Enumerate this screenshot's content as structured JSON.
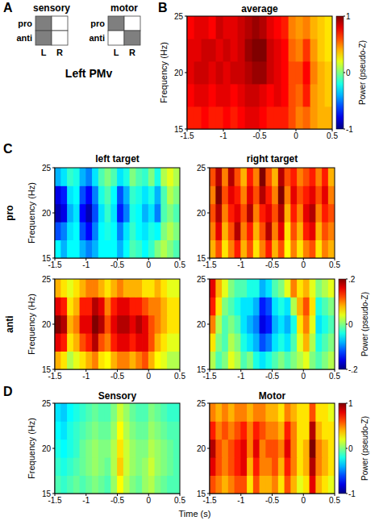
{
  "panel_letters": [
    "A",
    "B",
    "C",
    "D"
  ],
  "schematic": {
    "title": "Left PMv",
    "grids": [
      {
        "title": "sensory",
        "rows": [
          "pro",
          "anti"
        ],
        "columns": [
          "L",
          "R"
        ],
        "filled": [
          [
            true,
            false
          ],
          [
            true,
            false
          ]
        ]
      },
      {
        "title": "motor",
        "rows": [
          "pro",
          "anti"
        ],
        "columns": [
          "L",
          "R"
        ],
        "filled": [
          [
            true,
            false
          ],
          [
            false,
            true
          ]
        ]
      }
    ]
  },
  "C_columns": [
    "left target",
    "right target"
  ],
  "C_rows": [
    "pro",
    "anti"
  ],
  "shared_xlabel": "Time (s)",
  "chart_data": [
    {
      "type": "heatmap",
      "title": "average",
      "ylabel": "Frequency (Hz)",
      "x": [
        -1.45,
        -1.35,
        -1.25,
        -1.15,
        -1.05,
        -0.95,
        -0.85,
        -0.75,
        -0.65,
        -0.55,
        -0.45,
        -0.35,
        -0.25,
        -0.15,
        -0.05,
        0.05,
        0.15,
        0.25,
        0.35,
        0.45
      ],
      "y": [
        16,
        18,
        20,
        22,
        24
      ],
      "cells": [
        [
          0.7,
          0.7,
          0.75,
          0.7,
          0.7,
          0.75,
          0.7,
          0.75,
          0.8,
          0.8,
          0.75,
          0.7,
          0.7,
          0.7,
          0.6,
          0.5,
          0.55,
          0.45,
          0.4,
          0.4
        ],
        [
          0.75,
          0.8,
          0.8,
          0.75,
          0.8,
          0.8,
          0.75,
          0.8,
          0.85,
          0.85,
          0.8,
          0.75,
          0.8,
          0.75,
          0.6,
          0.55,
          0.7,
          0.45,
          0.4,
          0.35
        ],
        [
          0.8,
          0.85,
          0.85,
          0.8,
          0.85,
          0.8,
          0.85,
          0.85,
          0.9,
          0.95,
          0.95,
          0.85,
          0.8,
          0.75,
          0.6,
          0.6,
          0.75,
          0.5,
          0.4,
          0.35
        ],
        [
          0.8,
          0.8,
          0.85,
          0.85,
          0.8,
          0.85,
          0.8,
          0.85,
          0.95,
          1.0,
          1.0,
          0.85,
          0.8,
          0.75,
          0.55,
          0.5,
          0.65,
          0.45,
          0.35,
          0.3
        ],
        [
          0.75,
          0.8,
          0.8,
          0.75,
          0.85,
          0.8,
          0.8,
          0.85,
          0.9,
          0.95,
          0.9,
          0.8,
          0.75,
          0.7,
          0.5,
          0.45,
          0.5,
          0.4,
          0.35,
          0.3
        ]
      ],
      "xlim": [
        -1.5,
        0.5
      ],
      "ylim": [
        15,
        25
      ],
      "xticks": [
        -1.5,
        -1,
        -0.5,
        0,
        0.5
      ],
      "yticks": [
        15,
        20,
        25
      ],
      "zlim": [
        -1,
        1
      ],
      "colorbar_ticks": [
        1,
        0,
        -1
      ],
      "colorbar_label": "Power (pseudo-Z)"
    },
    {
      "type": "heatmap",
      "ylabel": "Frequency (Hz)",
      "x": [
        -1.45,
        -1.35,
        -1.25,
        -1.15,
        -1.05,
        -0.95,
        -0.85,
        -0.75,
        -0.65,
        -0.55,
        -0.45,
        -0.35,
        -0.25,
        -0.15,
        -0.05,
        0.05,
        0.15,
        0.25,
        0.35,
        0.45
      ],
      "y": [
        16,
        18,
        20,
        22,
        24
      ],
      "cells": [
        [
          -0.05,
          -0.08,
          -0.05,
          -0.05,
          -0.08,
          -0.1,
          -0.08,
          -0.05,
          -0.05,
          -0.05,
          -0.08,
          -0.05,
          -0.02,
          -0.03,
          -0.05,
          -0.03,
          0.0,
          0.02,
          0.0,
          -0.02
        ],
        [
          -0.12,
          -0.1,
          -0.06,
          -0.05,
          -0.12,
          -0.15,
          -0.1,
          -0.05,
          -0.04,
          -0.05,
          -0.1,
          -0.06,
          -0.03,
          -0.05,
          -0.06,
          -0.04,
          -0.05,
          0.0,
          0.02,
          0.0
        ],
        [
          -0.18,
          -0.16,
          -0.08,
          -0.06,
          -0.15,
          -0.18,
          -0.12,
          -0.06,
          -0.03,
          -0.06,
          -0.14,
          -0.1,
          -0.04,
          -0.05,
          -0.08,
          -0.06,
          -0.1,
          -0.02,
          0.0,
          -0.02
        ],
        [
          -0.16,
          -0.14,
          -0.06,
          -0.05,
          -0.12,
          -0.15,
          -0.1,
          -0.04,
          -0.02,
          -0.05,
          -0.12,
          -0.08,
          -0.03,
          -0.04,
          -0.06,
          -0.04,
          -0.08,
          -0.02,
          0.02,
          0.0
        ],
        [
          -0.08,
          -0.06,
          -0.03,
          -0.04,
          -0.08,
          -0.1,
          -0.06,
          -0.02,
          0.0,
          -0.02,
          -0.06,
          -0.04,
          0.0,
          -0.02,
          -0.03,
          0.0,
          -0.04,
          0.02,
          0.04,
          0.02
        ]
      ],
      "xlim": [
        -1.5,
        0.5
      ],
      "ylim": [
        15,
        25
      ],
      "xticks": [
        -1.5,
        -1,
        -0.5,
        0,
        0.5
      ],
      "yticks": [
        15,
        20,
        25
      ],
      "zlim": [
        -0.2,
        0.2
      ]
    },
    {
      "type": "heatmap",
      "x": [
        -1.45,
        -1.35,
        -1.25,
        -1.15,
        -1.05,
        -0.95,
        -0.85,
        -0.75,
        -0.65,
        -0.55,
        -0.45,
        -0.35,
        -0.25,
        -0.15,
        -0.05,
        0.05,
        0.15,
        0.25,
        0.35,
        0.45
      ],
      "y": [
        16,
        18,
        20,
        22,
        24
      ],
      "cells": [
        [
          0.08,
          0.12,
          0.06,
          0.1,
          0.14,
          0.08,
          0.12,
          0.06,
          0.1,
          0.14,
          0.08,
          0.12,
          0.05,
          0.1,
          0.06,
          0.1,
          0.12,
          0.06,
          0.1,
          0.08
        ],
        [
          0.1,
          0.16,
          0.08,
          0.12,
          0.18,
          0.1,
          0.14,
          0.08,
          0.12,
          0.18,
          0.1,
          0.16,
          0.06,
          0.12,
          0.08,
          0.14,
          0.16,
          0.08,
          0.12,
          0.1
        ],
        [
          0.12,
          0.18,
          0.1,
          0.14,
          0.16,
          0.12,
          0.18,
          0.1,
          0.14,
          0.16,
          0.12,
          0.18,
          0.08,
          0.14,
          0.1,
          0.16,
          0.18,
          0.1,
          0.14,
          0.12
        ],
        [
          0.1,
          0.2,
          0.12,
          0.16,
          0.14,
          0.1,
          0.16,
          0.12,
          0.18,
          0.14,
          0.1,
          0.2,
          0.1,
          0.16,
          0.12,
          0.14,
          0.16,
          0.12,
          0.16,
          0.1
        ],
        [
          0.12,
          0.18,
          0.1,
          0.18,
          0.12,
          0.08,
          0.14,
          0.1,
          0.2,
          0.12,
          0.08,
          0.18,
          0.12,
          0.14,
          0.1,
          0.12,
          0.14,
          0.1,
          0.14,
          0.08
        ]
      ],
      "xlim": [
        -1.5,
        0.5
      ],
      "ylim": [
        15,
        25
      ],
      "xticks": [
        -1.5,
        -1,
        -0.5,
        0,
        0.5
      ],
      "yticks": [
        15,
        20,
        25
      ],
      "zlim": [
        -0.2,
        0.2
      ]
    },
    {
      "type": "heatmap",
      "ylabel": "Frequency (Hz)",
      "x": [
        -1.45,
        -1.35,
        -1.25,
        -1.15,
        -1.05,
        -0.95,
        -0.85,
        -0.75,
        -0.65,
        -0.55,
        -0.45,
        -0.35,
        -0.25,
        -0.15,
        -0.05,
        0.05,
        0.15,
        0.25,
        0.35,
        0.45
      ],
      "y": [
        16,
        18,
        20,
        22,
        24
      ],
      "cells": [
        [
          0.08,
          0.06,
          0.02,
          0.04,
          0.06,
          0.08,
          0.1,
          0.06,
          0.05,
          0.08,
          0.1,
          0.1,
          0.08,
          0.1,
          0.12,
          0.08,
          0.05,
          0.04,
          0.02,
          0.02
        ],
        [
          0.16,
          0.14,
          0.06,
          0.08,
          0.12,
          0.14,
          0.18,
          0.12,
          0.1,
          0.14,
          0.16,
          0.16,
          0.14,
          0.16,
          0.16,
          0.12,
          0.08,
          0.06,
          0.04,
          0.04
        ],
        [
          0.2,
          0.18,
          0.08,
          0.1,
          0.16,
          0.16,
          0.2,
          0.18,
          0.12,
          0.16,
          0.18,
          0.18,
          0.16,
          0.18,
          0.16,
          0.12,
          0.1,
          0.08,
          0.06,
          0.06
        ],
        [
          0.16,
          0.14,
          0.06,
          0.08,
          0.14,
          0.14,
          0.18,
          0.16,
          0.1,
          0.14,
          0.16,
          0.16,
          0.14,
          0.14,
          0.12,
          0.1,
          0.1,
          0.08,
          0.06,
          0.06
        ],
        [
          0.08,
          0.06,
          0.04,
          0.06,
          0.08,
          0.1,
          0.1,
          0.08,
          0.06,
          0.08,
          0.1,
          0.08,
          0.08,
          0.08,
          0.06,
          0.06,
          0.08,
          0.06,
          0.04,
          0.04
        ]
      ],
      "xlim": [
        -1.5,
        0.5
      ],
      "ylim": [
        15,
        25
      ],
      "xticks": [
        -1.5,
        -1,
        -0.5,
        0,
        0.5
      ],
      "yticks": [
        15,
        20,
        25
      ],
      "zlim": [
        -0.2,
        0.2
      ]
    },
    {
      "type": "heatmap",
      "x": [
        -1.45,
        -1.35,
        -1.25,
        -1.15,
        -1.05,
        -0.95,
        -0.85,
        -0.75,
        -0.65,
        -0.55,
        -0.45,
        -0.35,
        -0.25,
        -0.15,
        -0.05,
        0.05,
        0.15,
        0.25,
        0.35,
        0.45
      ],
      "y": [
        16,
        18,
        20,
        22,
        24
      ],
      "cells": [
        [
          0.02,
          -0.02,
          0.0,
          0.04,
          0.02,
          -0.02,
          0.0,
          -0.04,
          -0.06,
          -0.04,
          -0.02,
          0.0,
          -0.02,
          0.0,
          0.02,
          0.04,
          0.0,
          -0.02,
          0.0,
          0.02
        ],
        [
          0.06,
          0.0,
          -0.02,
          0.02,
          0.0,
          -0.04,
          -0.06,
          -0.08,
          -0.12,
          -0.1,
          -0.06,
          -0.04,
          -0.06,
          -0.02,
          0.04,
          0.08,
          0.02,
          -0.04,
          -0.02,
          0.0
        ],
        [
          0.1,
          0.02,
          -0.02,
          0.0,
          -0.02,
          -0.06,
          -0.08,
          -0.1,
          -0.16,
          -0.14,
          -0.08,
          -0.06,
          -0.08,
          -0.04,
          0.06,
          0.1,
          0.04,
          -0.06,
          -0.04,
          -0.02
        ],
        [
          0.14,
          0.06,
          0.0,
          -0.02,
          -0.04,
          -0.06,
          -0.06,
          -0.08,
          -0.14,
          -0.12,
          -0.06,
          -0.04,
          -0.06,
          0.02,
          0.08,
          0.12,
          0.06,
          -0.04,
          -0.02,
          0.0
        ],
        [
          0.16,
          0.08,
          0.04,
          0.0,
          -0.02,
          -0.02,
          -0.04,
          -0.04,
          -0.08,
          -0.06,
          -0.02,
          0.0,
          0.04,
          0.1,
          0.06,
          0.08,
          0.04,
          0.0,
          0.02,
          0.04
        ]
      ],
      "xlim": [
        -1.5,
        0.5
      ],
      "ylim": [
        15,
        25
      ],
      "xticks": [
        -1.5,
        -1,
        -0.5,
        0,
        0.5
      ],
      "yticks": [
        15,
        20,
        25
      ],
      "zlim": [
        -0.2,
        0.2
      ],
      "colorbar_ticks": [
        {
          "value": 0.2,
          "label": ".2"
        },
        0,
        {
          "value": -0.2,
          "label": "-.2"
        }
      ],
      "colorbar_label": "Power (pseudo-Z)"
    },
    {
      "type": "heatmap",
      "title": "Sensory",
      "ylabel": "Frequency (Hz)",
      "x": [
        -1.45,
        -1.35,
        -1.25,
        -1.15,
        -1.05,
        -0.95,
        -0.85,
        -0.75,
        -0.65,
        -0.55,
        -0.45,
        -0.35,
        -0.25,
        -0.15,
        -0.05,
        0.05,
        0.15,
        0.25,
        0.35,
        0.45
      ],
      "y": [
        16,
        18,
        20,
        22,
        24
      ],
      "cells": [
        [
          -0.1,
          -0.15,
          -0.1,
          -0.05,
          -0.1,
          -0.05,
          0.0,
          -0.05,
          -0.1,
          0.05,
          0.25,
          0.1,
          0.0,
          -0.05,
          0.05,
          0.1,
          0.0,
          -0.05,
          -0.1,
          -0.1
        ],
        [
          -0.15,
          -0.2,
          -0.15,
          -0.1,
          -0.05,
          0.0,
          0.05,
          0.0,
          -0.05,
          0.1,
          0.35,
          0.15,
          0.05,
          0.0,
          0.05,
          0.15,
          0.05,
          0.0,
          -0.05,
          -0.1
        ],
        [
          -0.2,
          -0.25,
          -0.2,
          -0.15,
          -0.05,
          0.0,
          0.05,
          0.0,
          0.0,
          0.1,
          0.3,
          0.15,
          0.05,
          0.0,
          0.0,
          0.1,
          0.05,
          0.0,
          -0.05,
          -0.1
        ],
        [
          -0.25,
          -0.3,
          -0.2,
          -0.15,
          -0.1,
          -0.05,
          0.0,
          -0.05,
          -0.05,
          0.05,
          0.25,
          0.1,
          0.0,
          -0.05,
          -0.05,
          0.05,
          0.0,
          -0.05,
          -0.1,
          -0.1
        ],
        [
          -0.3,
          -0.35,
          -0.25,
          -0.2,
          -0.15,
          -0.1,
          -0.05,
          -0.1,
          -0.1,
          0.0,
          0.15,
          0.05,
          -0.05,
          -0.1,
          -0.1,
          0.0,
          -0.05,
          -0.1,
          -0.15,
          -0.15
        ]
      ],
      "xlim": [
        -1.5,
        0.5
      ],
      "ylim": [
        15,
        25
      ],
      "xticks": [
        -1.5,
        -1,
        -0.5,
        0,
        0.5
      ],
      "yticks": [
        15,
        20,
        25
      ],
      "zlim": [
        -1,
        1
      ]
    },
    {
      "type": "heatmap",
      "title": "Motor",
      "x": [
        -1.45,
        -1.35,
        -1.25,
        -1.15,
        -1.05,
        -0.95,
        -0.85,
        -0.75,
        -0.65,
        -0.55,
        -0.45,
        -0.35,
        -0.25,
        -0.15,
        -0.05,
        0.05,
        0.15,
        0.25,
        0.35,
        0.45
      ],
      "y": [
        16,
        18,
        20,
        22,
        24
      ],
      "cells": [
        [
          0.6,
          0.5,
          0.4,
          0.5,
          0.6,
          0.6,
          0.3,
          0.6,
          0.4,
          0.4,
          0.5,
          0.3,
          0.6,
          0.4,
          0.2,
          0.3,
          0.8,
          0.4,
          0.3,
          0.2
        ],
        [
          0.8,
          0.6,
          0.5,
          0.6,
          0.7,
          0.8,
          0.4,
          0.7,
          0.5,
          0.5,
          0.6,
          0.4,
          0.7,
          0.5,
          0.3,
          0.4,
          0.9,
          0.5,
          0.4,
          0.3
        ],
        [
          0.9,
          0.6,
          0.5,
          0.6,
          0.7,
          0.8,
          0.5,
          0.8,
          0.5,
          0.6,
          0.6,
          0.5,
          0.8,
          0.5,
          0.3,
          0.4,
          1.0,
          0.5,
          0.4,
          0.3
        ],
        [
          0.7,
          0.5,
          0.6,
          0.5,
          0.6,
          0.7,
          0.5,
          0.7,
          0.6,
          0.5,
          0.5,
          0.4,
          0.7,
          0.5,
          0.3,
          0.3,
          0.9,
          0.4,
          0.3,
          0.3
        ],
        [
          0.5,
          0.4,
          0.5,
          0.4,
          0.5,
          0.5,
          0.4,
          0.5,
          0.5,
          0.4,
          0.4,
          0.3,
          0.5,
          0.4,
          0.3,
          0.3,
          0.6,
          0.3,
          0.3,
          0.2
        ]
      ],
      "xlim": [
        -1.5,
        0.5
      ],
      "ylim": [
        15,
        25
      ],
      "xticks": [
        -1.5,
        -1,
        -0.5,
        0,
        0.5
      ],
      "yticks": [
        15,
        20,
        25
      ],
      "zlim": [
        -1,
        1
      ],
      "colorbar_ticks": [
        1,
        0,
        -1
      ],
      "colorbar_label": "Power (pseudo-Z)"
    }
  ]
}
